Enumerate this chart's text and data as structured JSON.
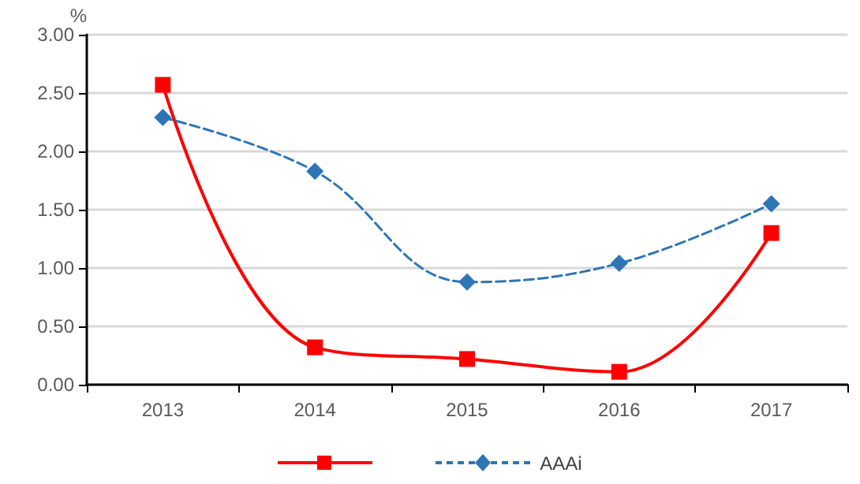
{
  "chart_data": {
    "type": "line",
    "ylabel": "%",
    "categories": [
      "2013",
      "2014",
      "2015",
      "2016",
      "2017"
    ],
    "series": [
      {
        "color": "#ff0000",
        "values": [
          2.57,
          0.32,
          0.22,
          0.11,
          1.3
        ],
        "marker": "square",
        "line_style": "solid"
      },
      {
        "name": "AAAi",
        "color": "#2e75b6",
        "values": [
          2.29,
          1.83,
          0.88,
          1.04,
          1.55
        ],
        "marker": "diamond",
        "line_style": "dashed"
      }
    ],
    "ylim": [
      0,
      3
    ],
    "yticks": [
      {
        "value": 0,
        "label": "0.00"
      },
      {
        "value": 0.5,
        "label": "0.50"
      },
      {
        "value": 1,
        "label": "1.00"
      },
      {
        "value": 1.5,
        "label": "1.50"
      },
      {
        "value": 2,
        "label": "2.00"
      },
      {
        "value": 2.5,
        "label": "2.50"
      },
      {
        "value": 3,
        "label": "3.00"
      }
    ],
    "grid": "y",
    "legend": "bottom"
  }
}
